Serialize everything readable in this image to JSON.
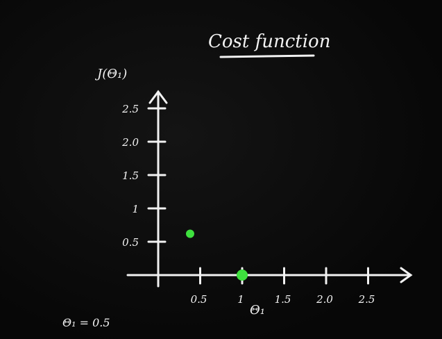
{
  "chart_data": {
    "type": "scatter",
    "title": "Cost function",
    "ylabel": "J(Θ₁)",
    "xlabel": "Θ₁",
    "x_ticks": [
      "0.5",
      "1",
      "1.5",
      "2.0",
      "2.5"
    ],
    "x_tick_values": [
      0.5,
      1,
      1.5,
      2.0,
      2.5
    ],
    "y_ticks": [
      "0.5",
      "1",
      "1.5",
      "2.0",
      "2.5"
    ],
    "y_tick_values": [
      0.5,
      1,
      1.5,
      2.0,
      2.5
    ],
    "xlim": [
      -0.1,
      2.95
    ],
    "ylim": [
      -0.1,
      2.75
    ],
    "grid": false,
    "points": [
      {
        "x": 0.38,
        "y": 0.62,
        "color": "#3ee03e"
      },
      {
        "x": 1.0,
        "y": 0.0,
        "color": "#3ee03e"
      }
    ],
    "annotation": "Θ₁ = 0.5"
  },
  "colors": {
    "background": "#0a0a0a",
    "ink": "#f2f2f2",
    "point": "#3ee03e"
  }
}
